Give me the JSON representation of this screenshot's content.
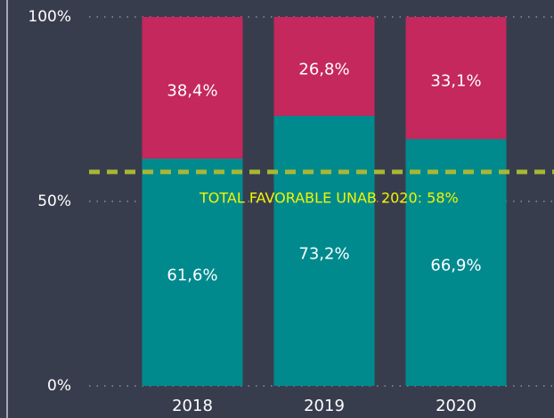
{
  "chart_data": {
    "type": "stacked_bar",
    "categories": [
      "2018",
      "2019",
      "2020"
    ],
    "series": [
      {
        "color": "#008a8e",
        "values": [
          61.6,
          73.2,
          66.9
        ],
        "value_labels": [
          "61,6%",
          "73,2%",
          "66,9%"
        ]
      },
      {
        "color": "#c4285c",
        "values": [
          38.4,
          26.8,
          33.1
        ],
        "value_labels": [
          "38,4%",
          "26,8%",
          "33,1%"
        ]
      }
    ],
    "ylim": [
      0,
      100
    ],
    "yticks": [
      {
        "value": 0,
        "label": "0%"
      },
      {
        "value": 50,
        "label": "50%"
      },
      {
        "value": 100,
        "label": "100%"
      }
    ],
    "grid": true,
    "reference_line": {
      "value": 58,
      "label": "TOTAL FAVORABLE UNAB 2020: 58%",
      "color": "#a8b832",
      "label_color": "#f4f400"
    }
  }
}
